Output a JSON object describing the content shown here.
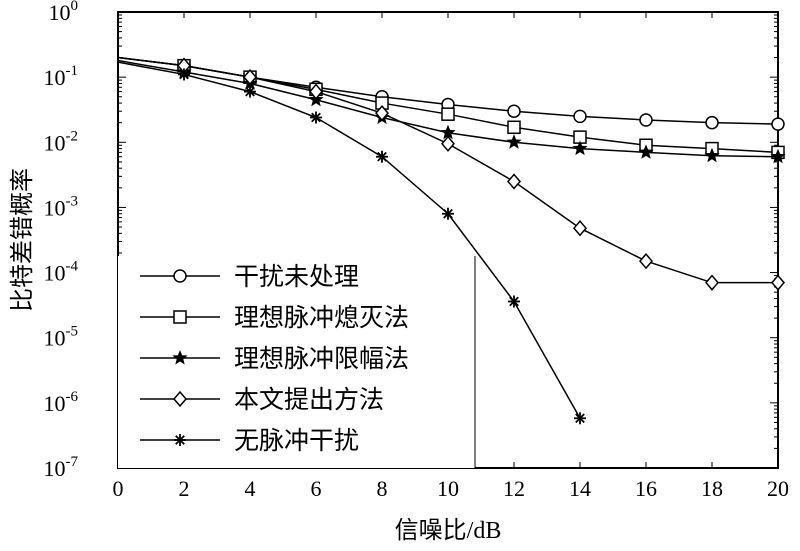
{
  "chart_data": {
    "type": "line",
    "xlabel": "信噪比/dB",
    "ylabel": "比特差错概率",
    "xlim": [
      0,
      20
    ],
    "ylim": [
      1e-07,
      1
    ],
    "yscale": "log",
    "grid": false,
    "legend_position": "bottom-left",
    "x_ticks": [
      "0",
      "2",
      "4",
      "6",
      "8",
      "10",
      "12",
      "14",
      "16",
      "18",
      "20"
    ],
    "y_ticks": [
      {
        "base": "10",
        "exp": "0"
      },
      {
        "base": "10",
        "exp": "-1"
      },
      {
        "base": "10",
        "exp": "-2"
      },
      {
        "base": "10",
        "exp": "-3"
      },
      {
        "base": "10",
        "exp": "-4"
      },
      {
        "base": "10",
        "exp": "-5"
      },
      {
        "base": "10",
        "exp": "-6"
      },
      {
        "base": "10",
        "exp": "-7"
      }
    ],
    "series": [
      {
        "name": "干扰未处理",
        "marker": "circle",
        "x": [
          0,
          2,
          4,
          6,
          8,
          10,
          12,
          14,
          16,
          18,
          20
        ],
        "values": [
          0.2,
          0.15,
          0.1,
          0.07,
          0.05,
          0.038,
          0.03,
          0.025,
          0.022,
          0.02,
          0.019
        ]
      },
      {
        "name": "理想脉冲熄灭法",
        "marker": "square",
        "x": [
          0,
          2,
          4,
          6,
          8,
          10,
          12,
          14,
          16,
          18,
          20
        ],
        "values": [
          0.2,
          0.15,
          0.1,
          0.065,
          0.04,
          0.027,
          0.017,
          0.012,
          0.009,
          0.008,
          0.007
        ]
      },
      {
        "name": "理想脉冲限幅法",
        "marker": "star",
        "x": [
          0,
          2,
          4,
          6,
          8,
          10,
          12,
          14,
          16,
          18,
          20
        ],
        "values": [
          0.18,
          0.12,
          0.08,
          0.045,
          0.024,
          0.014,
          0.01,
          0.008,
          0.007,
          0.0062,
          0.006
        ]
      },
      {
        "name": "本文提出方法",
        "marker": "diamond",
        "x": [
          0,
          2,
          4,
          6,
          8,
          10,
          12,
          14,
          16,
          18,
          20
        ],
        "values": [
          0.2,
          0.15,
          0.1,
          0.06,
          0.028,
          0.0095,
          0.0025,
          0.00048,
          0.00015,
          7e-05,
          7e-05
        ]
      },
      {
        "name": "无脉冲干扰",
        "marker": "asterisk",
        "x": [
          0,
          2,
          4,
          6,
          8,
          10,
          12,
          14
        ],
        "values": [
          0.17,
          0.11,
          0.06,
          0.024,
          0.006,
          0.0008,
          3.6e-05,
          5.8e-07
        ]
      }
    ],
    "color": "#000000"
  }
}
